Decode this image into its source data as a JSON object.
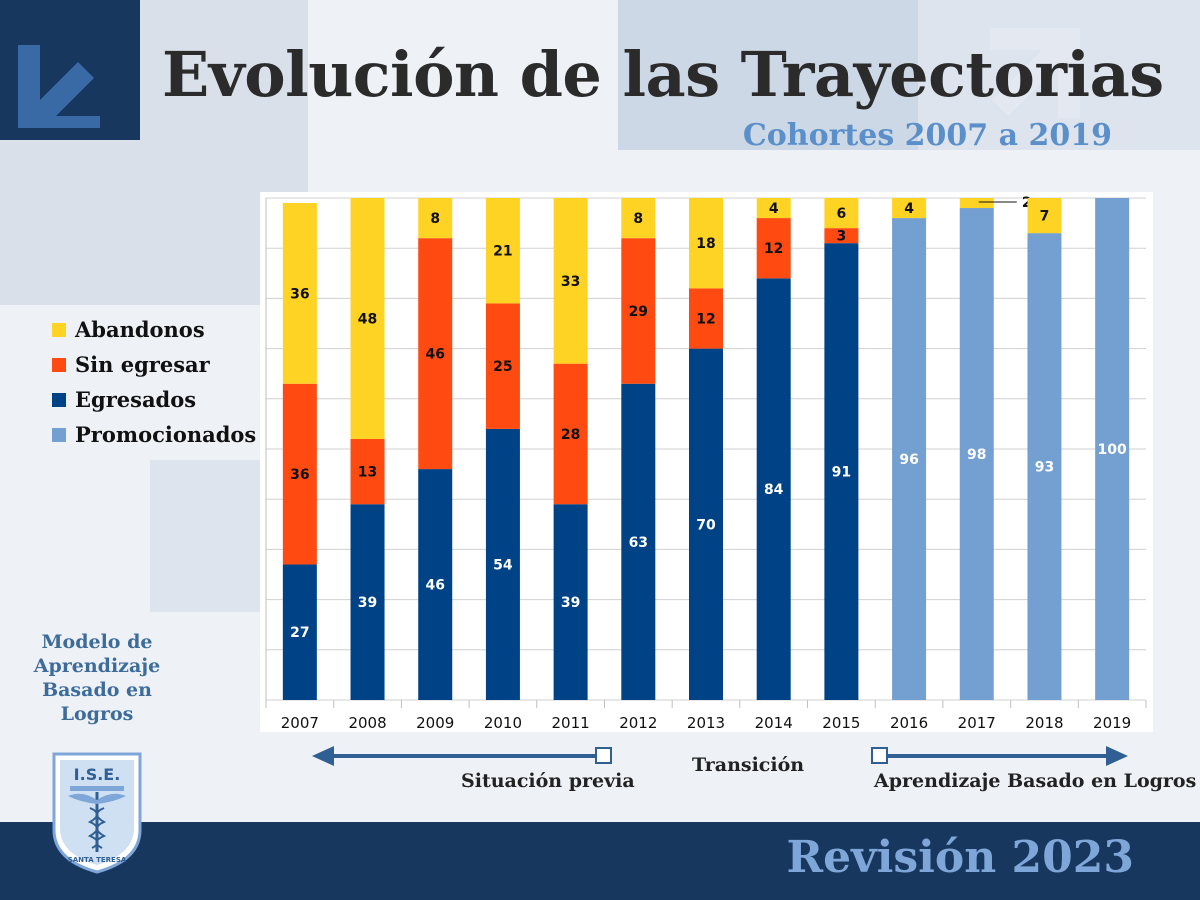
{
  "slide": {
    "title": "Evolución de las Trayectorias",
    "subtitle": "Cohortes 2007 a 2019",
    "side_note": "Modelo de Aprendizaje Basado en Logros",
    "revision": "Revisión 2023",
    "logo_text": "I.S.E.",
    "logo_caption": "SANTA TERESA"
  },
  "legend": [
    {
      "label": "Abandonos",
      "color": "#ffd324"
    },
    {
      "label": "Sin egresar",
      "color": "#ff4a12"
    },
    {
      "label": "Egresados",
      "color": "#004286"
    },
    {
      "label": "Promocionados",
      "color": "#739fd1"
    }
  ],
  "phases": {
    "previous": "Situación previa",
    "transition": "Transición",
    "new_model": "Aprendizaje Basado en Logros"
  },
  "colors": {
    "abandonos": "#ffd324",
    "sin_egresar": "#ff4a12",
    "egresados": "#004286",
    "promocionados": "#739fd1",
    "footer": "#17375e",
    "arrow": "#2f5f93"
  },
  "chart_data": {
    "type": "bar",
    "stacked": true,
    "categories": [
      "2007",
      "2008",
      "2009",
      "2010",
      "2011",
      "2012",
      "2013",
      "2014",
      "2015",
      "2016",
      "2017",
      "2018",
      "2019"
    ],
    "series": [
      {
        "name": "Egresados",
        "values": [
          27,
          39,
          46,
          54,
          39,
          63,
          70,
          84,
          91,
          null,
          null,
          null,
          null
        ]
      },
      {
        "name": "Promocionados",
        "values": [
          null,
          null,
          null,
          null,
          null,
          null,
          null,
          null,
          null,
          96,
          98,
          93,
          100
        ]
      },
      {
        "name": "Sin egresar",
        "values": [
          36,
          13,
          46,
          25,
          28,
          29,
          12,
          12,
          3,
          null,
          null,
          null,
          null
        ]
      },
      {
        "name": "Abandonos",
        "values": [
          36,
          48,
          8,
          21,
          33,
          8,
          18,
          4,
          6,
          4,
          2,
          7,
          null
        ]
      }
    ],
    "ylim": [
      0,
      100
    ],
    "grid": true,
    "legend_position": "left"
  }
}
